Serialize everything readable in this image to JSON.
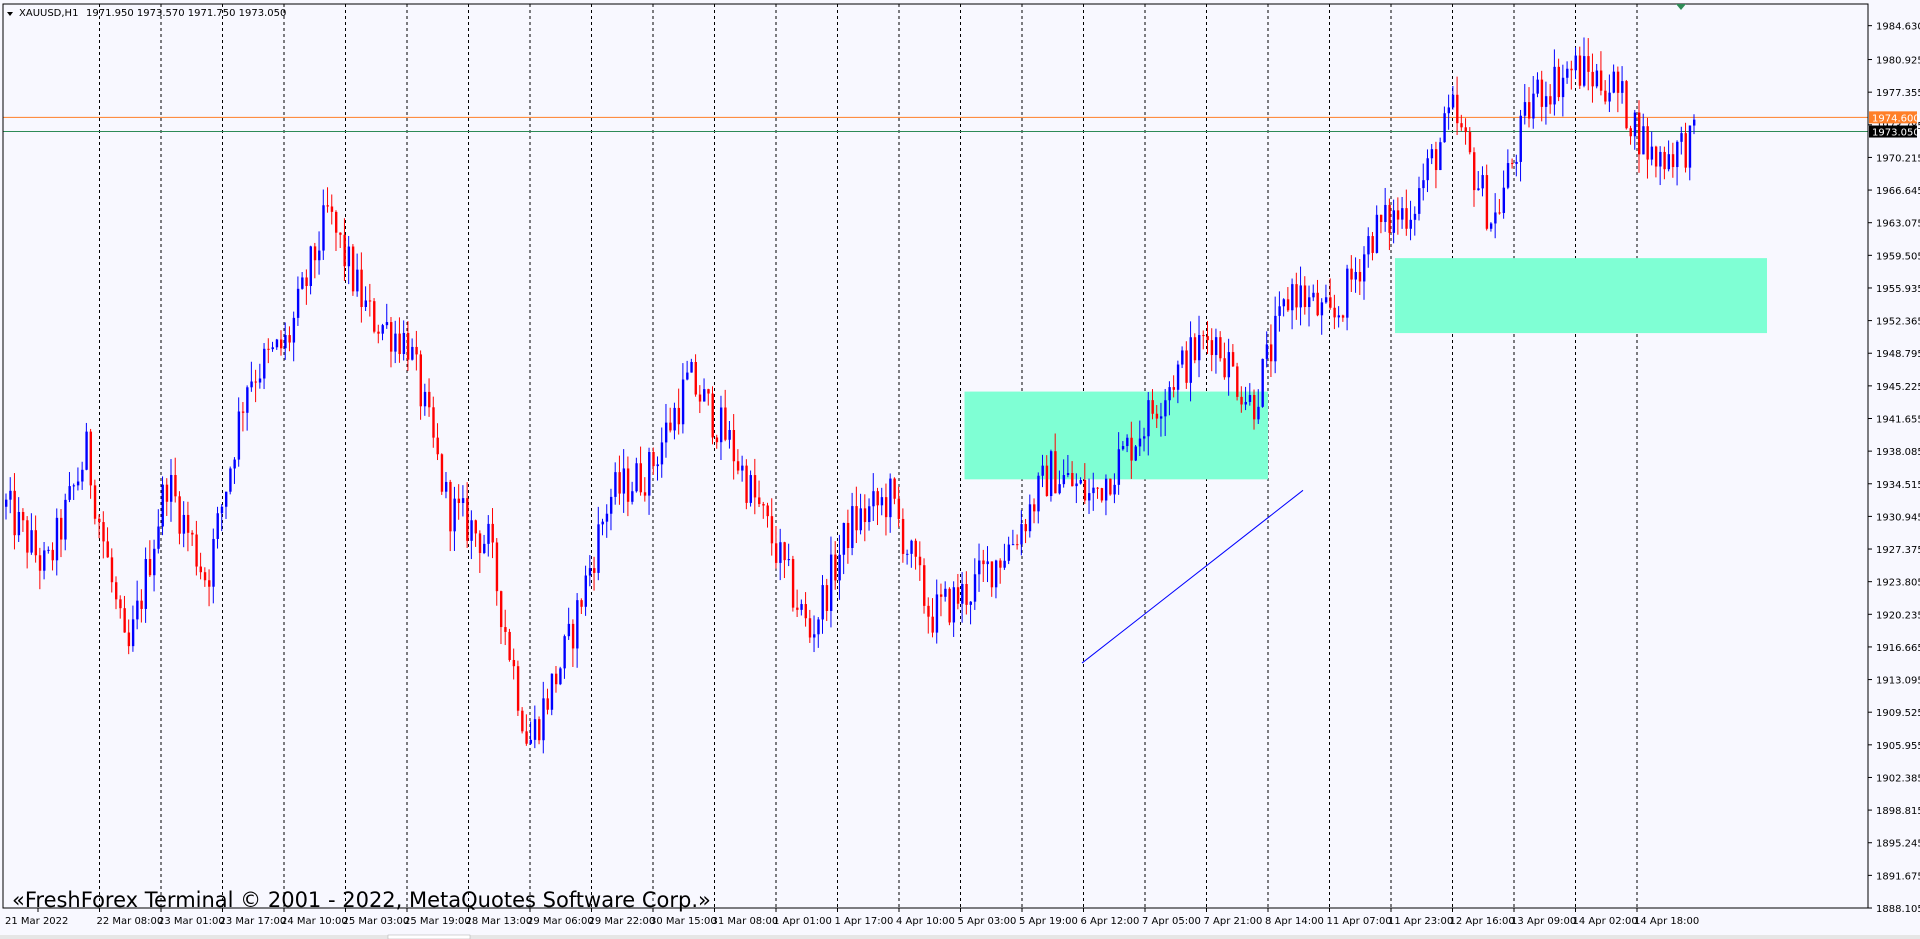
{
  "window": {
    "symbol_timeframe": "XAUUSD,H1",
    "ohlc_text": "1971.950 1973.570 1971.750 1973.050",
    "watermark": "«FreshForex Terminal © 2001 - 2022, MetaQuotes Software Corp.»"
  },
  "colors": {
    "background": "#f8f8ff",
    "bull_candle": "#0000ff",
    "bear_candle": "#ff0000",
    "grid": "#000000",
    "zone_fill": "#7fffd4",
    "hline_orange": "#ff7f27",
    "hline_teal": "#2e8b57",
    "trendline": "#0000ff"
  },
  "chart_data": {
    "type": "candlestick",
    "symbol": "XAUUSD",
    "timeframe": "H1",
    "ylim": [
      1888.105,
      1987.0
    ],
    "y_ticks": [
      "1984.630",
      "1980.925",
      "1977.355",
      "1973.785",
      "1970.215",
      "1966.645",
      "1963.075",
      "1959.505",
      "1955.935",
      "1952.365",
      "1948.795",
      "1945.225",
      "1941.655",
      "1938.085",
      "1934.515",
      "1930.945",
      "1927.375",
      "1923.805",
      "1920.235",
      "1916.665",
      "1913.095",
      "1909.525",
      "1905.955",
      "1902.385",
      "1898.815",
      "1895.245",
      "1891.675",
      "1888.105"
    ],
    "x_labels": [
      "21 Mar 2022",
      "22 Mar 08:00",
      "23 Mar 01:00",
      "23 Mar 17:00",
      "24 Mar 10:00",
      "25 Mar 03:00",
      "25 Mar 19:00",
      "28 Mar 13:00",
      "29 Mar 06:00",
      "29 Mar 22:00",
      "30 Mar 15:00",
      "31 Mar 08:00",
      "1 Apr 01:00",
      "1 Apr 17:00",
      "4 Apr 10:00",
      "5 Apr 03:00",
      "5 Apr 19:00",
      "6 Apr 12:00",
      "7 Apr 05:00",
      "7 Apr 21:00",
      "8 Apr 14:00",
      "11 Apr 07:00",
      "11 Apr 23:00",
      "12 Apr 16:00",
      "13 Apr 09:00",
      "14 Apr 02:00",
      "14 Apr 18:00"
    ],
    "price_labels": [
      {
        "name": "ask",
        "value": "1974.600"
      },
      {
        "name": "bid",
        "value": "1973.050"
      }
    ],
    "horizontal_lines": [
      {
        "name": "orange-level",
        "value": 1974.6
      },
      {
        "name": "teal-level",
        "value": 1973.05
      }
    ],
    "zones": [
      {
        "name": "zone-1",
        "from_label": "5 Apr 03:00",
        "to_label": "8 Apr 14:00",
        "top": 1944.6,
        "bottom": 1935.0
      },
      {
        "name": "zone-2",
        "from_label": "11 Apr 23:00",
        "to_label": "14 Apr 18:00",
        "top": 1959.2,
        "bottom": 1951.0
      }
    ],
    "trendline": {
      "from": [
        "5 Apr 19:00",
        1914.9
      ],
      "to": [
        "8 Apr 14:00",
        1933.8
      ]
    },
    "anchors": [
      1932,
      1925,
      1938,
      1915,
      1935,
      1924,
      1946,
      1950,
      1964,
      1953,
      1950,
      1932,
      1928,
      1906,
      1917,
      1933,
      1936,
      1946,
      1939,
      1929,
      1918,
      1930,
      1933,
      1920,
      1923,
      1928,
      1936,
      1933,
      1939,
      1946,
      1951,
      1943,
      1956,
      1952,
      1962,
      1965,
      1975,
      1963,
      1977,
      1980,
      1978,
      1970,
      1972
    ]
  }
}
